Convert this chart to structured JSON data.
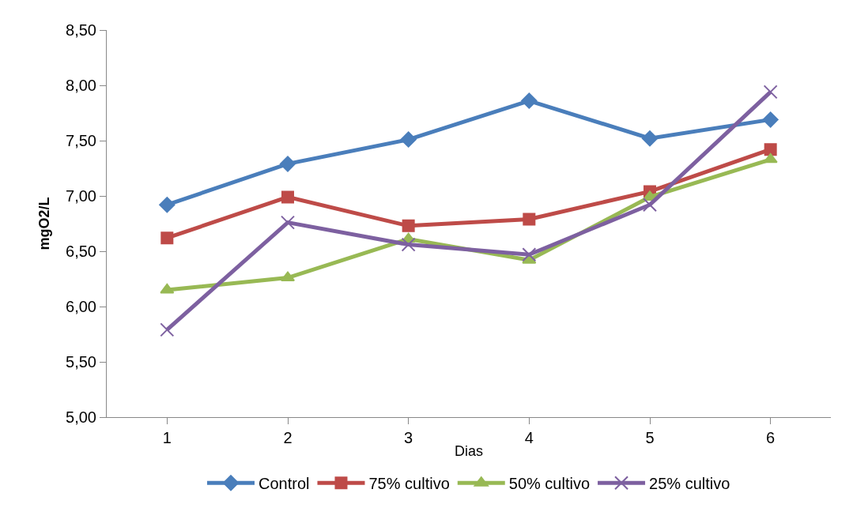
{
  "chart_data": {
    "type": "line",
    "xlabel": "Dias",
    "ylabel": "mgO2/L",
    "categories": [
      "1",
      "2",
      "3",
      "4",
      "5",
      "6"
    ],
    "ylim": [
      5.0,
      8.5
    ],
    "yticks": [
      {
        "value": 5.0,
        "label": "5,00"
      },
      {
        "value": 5.5,
        "label": "5,50"
      },
      {
        "value": 6.0,
        "label": "6,00"
      },
      {
        "value": 6.5,
        "label": "6,50"
      },
      {
        "value": 7.0,
        "label": "7,00"
      },
      {
        "value": 7.5,
        "label": "7,50"
      },
      {
        "value": 8.0,
        "label": "8,00"
      },
      {
        "value": 8.5,
        "label": "8,50"
      }
    ],
    "grid": false,
    "legend": "bottom",
    "series": [
      {
        "name": "Control",
        "color": "#4a7ebb",
        "marker": "diamond",
        "values": [
          6.92,
          7.29,
          7.51,
          7.86,
          7.52,
          7.69
        ]
      },
      {
        "name": "75% cultivo",
        "color": "#be4b48",
        "marker": "square",
        "values": [
          6.62,
          6.99,
          6.73,
          6.79,
          7.04,
          7.42
        ]
      },
      {
        "name": "50% cultivo",
        "color": "#98b954",
        "marker": "triangle",
        "values": [
          6.15,
          6.26,
          6.61,
          6.42,
          6.99,
          7.33
        ]
      },
      {
        "name": "25% cultivo",
        "color": "#7d60a0",
        "marker": "cross",
        "values": [
          5.79,
          6.76,
          6.56,
          6.47,
          6.92,
          7.94
        ]
      }
    ]
  }
}
